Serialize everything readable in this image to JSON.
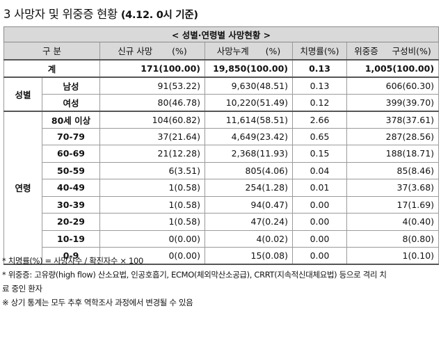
{
  "heading": {
    "main": "3 사망자 및 위중증 현황",
    "sub": "(4.12. 0시 기준)"
  },
  "table": {
    "caption": "< 성별·연령별 사망현황 >",
    "columns": {
      "category": "구 분",
      "new_deaths": "신규 사망",
      "new_deaths_unit": "(%)",
      "cum_deaths": "사망누계",
      "cum_deaths_unit": "(%)",
      "fatality": "치명률(%)",
      "severe": "위중증",
      "severe_unit": "구성비(%)"
    },
    "total": {
      "label": "계",
      "new_deaths": "171(100.00)",
      "cum_deaths": "19,850(100.00)",
      "fatality": "0.13",
      "severe": "1,005(100.00)"
    },
    "sex_group": "성별",
    "sex_rows": [
      {
        "label": "남성",
        "new_deaths": "91(53.22)",
        "cum_deaths": "9,630(48.51)",
        "fatality": "0.13",
        "severe": "606(60.30)"
      },
      {
        "label": "여성",
        "new_deaths": "80(46.78)",
        "cum_deaths": "10,220(51.49)",
        "fatality": "0.12",
        "severe": "399(39.70)"
      }
    ],
    "age_group": "연령",
    "age_rows": [
      {
        "label": "80세 이상",
        "new_deaths": "104(60.82)",
        "cum_deaths": "11,614(58.51)",
        "fatality": "2.66",
        "severe": "378(37.61)"
      },
      {
        "label": "70-79",
        "new_deaths": "37(21.64)",
        "cum_deaths": "4,649(23.42)",
        "fatality": "0.65",
        "severe": "287(28.56)"
      },
      {
        "label": "60-69",
        "new_deaths": "21(12.28)",
        "cum_deaths": "2,368(11.93)",
        "fatality": "0.15",
        "severe": "188(18.71)"
      },
      {
        "label": "50-59",
        "new_deaths": "6(3.51)",
        "cum_deaths": "805(4.06)",
        "fatality": "0.04",
        "severe": "85(8.46)"
      },
      {
        "label": "40-49",
        "new_deaths": "1(0.58)",
        "cum_deaths": "254(1.28)",
        "fatality": "0.01",
        "severe": "37(3.68)"
      },
      {
        "label": "30-39",
        "new_deaths": "1(0.58)",
        "cum_deaths": "94(0.47)",
        "fatality": "0.00",
        "severe": "17(1.69)"
      },
      {
        "label": "20-29",
        "new_deaths": "1(0.58)",
        "cum_deaths": "47(0.24)",
        "fatality": "0.00",
        "severe": "4(0.40)"
      },
      {
        "label": "10-19",
        "new_deaths": "0(0.00)",
        "cum_deaths": "4(0.02)",
        "fatality": "0.00",
        "severe": "8(0.80)"
      },
      {
        "label": "0-9",
        "new_deaths": "0(0.00)",
        "cum_deaths": "15(0.08)",
        "fatality": "0.00",
        "severe": "1(0.10)"
      }
    ]
  },
  "notes": {
    "fatality_def": "* 치명률(%) = 사망자수 / 확진자수 × 100",
    "severe_def_1": "* 위중증: 고유량(high flow) 산소요법, 인공호흡기, ECMO(체외막산소공급), CRRT(지속적신대체요법) 등으로 격리 치",
    "severe_def_2": "료 중인 환자",
    "disclaimer": "※ 상기 통계는 모두 추후 역학조사 과정에서 변경될 수 있음"
  }
}
